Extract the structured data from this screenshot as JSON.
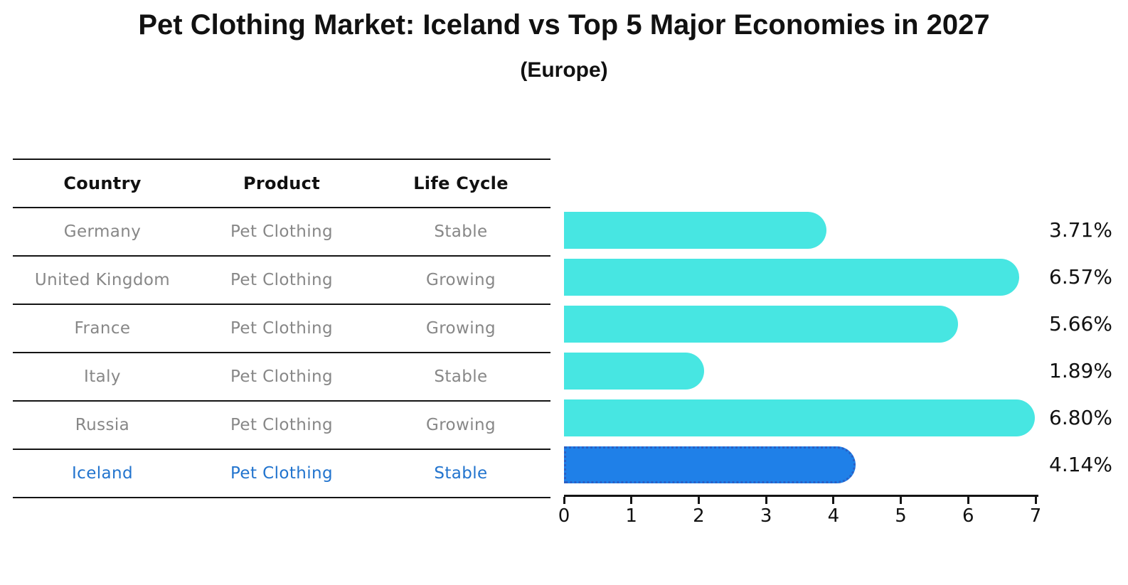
{
  "title": "Pet Clothing Market: Iceland vs Top 5 Major Economies in 2027",
  "subtitle": "(Europe)",
  "table": {
    "headers": [
      "Country",
      "Product",
      "Life Cycle"
    ],
    "rows": [
      {
        "country": "Germany",
        "product": "Pet Clothing",
        "life_cycle": "Stable",
        "highlight": false
      },
      {
        "country": "United Kingdom",
        "product": "Pet Clothing",
        "life_cycle": "Growing",
        "highlight": false
      },
      {
        "country": "France",
        "product": "Pet Clothing",
        "life_cycle": "Growing",
        "highlight": false
      },
      {
        "country": "Italy",
        "product": "Pet Clothing",
        "life_cycle": "Stable",
        "highlight": false
      },
      {
        "country": "Russia",
        "product": "Pet Clothing",
        "life_cycle": "Growing",
        "highlight": false
      },
      {
        "country": "Iceland",
        "product": "Pet Clothing",
        "life_cycle": "Stable",
        "highlight": true
      }
    ]
  },
  "chart_data": {
    "type": "bar",
    "orientation": "horizontal",
    "title": "Pet Clothing Market: Iceland vs Top 5 Major Economies in 2027 (Europe)",
    "categories": [
      "Germany",
      "United Kingdom",
      "France",
      "Italy",
      "Russia",
      "Iceland"
    ],
    "values": [
      3.71,
      6.57,
      5.66,
      1.89,
      6.8,
      4.14
    ],
    "value_labels": [
      "3.71%",
      "6.57%",
      "5.66%",
      "1.89%",
      "6.80%",
      "4.14%"
    ],
    "xlabel": "",
    "ylabel": "",
    "xlim": [
      0,
      7
    ],
    "xticks": [
      0,
      1,
      2,
      3,
      4,
      5,
      6,
      7
    ],
    "grid": false,
    "legend": false,
    "highlight_index": 5,
    "bar_color": "#47E6E2",
    "highlight_bar_color": "#1F80E8",
    "highlight_border_color": "#2b5fc4",
    "highlight_text_color": "#2274CE",
    "body_text_color": "#878787",
    "axis_color": "#141414"
  }
}
